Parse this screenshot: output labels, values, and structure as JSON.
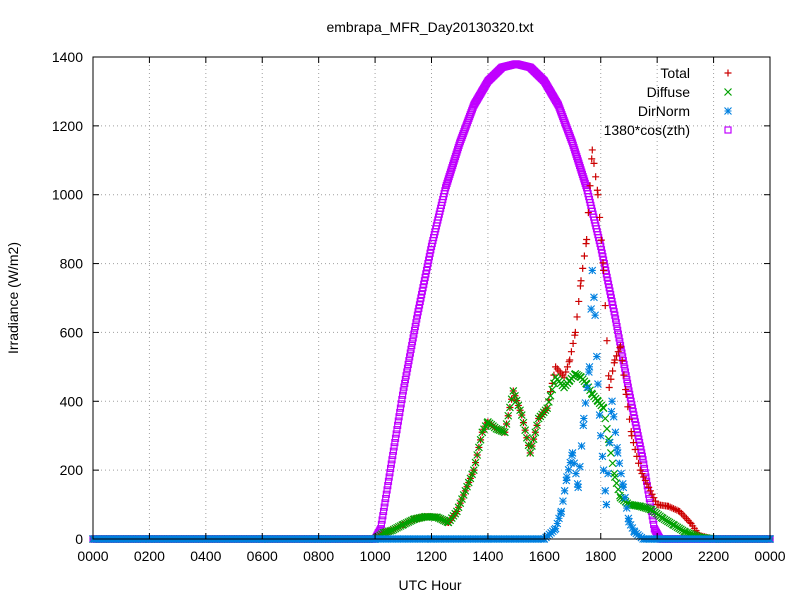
{
  "chart_data": {
    "type": "scatter",
    "title": "embrapa_MFR_Day20130320.txt",
    "xlabel": "UTC Hour",
    "ylabel": "Irradiance (W/m2)",
    "xlim": [
      0,
      24
    ],
    "ylim": [
      0,
      1400
    ],
    "x_ticks": [
      {
        "value": 0,
        "label": "0000"
      },
      {
        "value": 2,
        "label": "0200"
      },
      {
        "value": 4,
        "label": "0400"
      },
      {
        "value": 6,
        "label": "0600"
      },
      {
        "value": 8,
        "label": "0800"
      },
      {
        "value": 10,
        "label": "1000"
      },
      {
        "value": 12,
        "label": "1200"
      },
      {
        "value": 14,
        "label": "1400"
      },
      {
        "value": 16,
        "label": "1600"
      },
      {
        "value": 18,
        "label": "1800"
      },
      {
        "value": 20,
        "label": "2000"
      },
      {
        "value": 22,
        "label": "2200"
      },
      {
        "value": 24,
        "label": "0000"
      }
    ],
    "y_ticks": [
      0,
      200,
      400,
      600,
      800,
      1000,
      1200,
      1400
    ],
    "grid": true,
    "legend_position": "top-right",
    "series": [
      {
        "name": "Total",
        "marker": "plus",
        "color": "#cc0000",
        "points": [
          [
            0,
            0
          ],
          [
            2,
            0
          ],
          [
            4,
            0
          ],
          [
            6,
            0
          ],
          [
            8,
            0
          ],
          [
            10,
            0
          ],
          [
            10.3,
            18
          ],
          [
            10.6,
            25
          ],
          [
            11,
            42
          ],
          [
            11.4,
            58
          ],
          [
            11.8,
            65
          ],
          [
            12.2,
            63
          ],
          [
            12.6,
            48
          ],
          [
            12.9,
            80
          ],
          [
            13.2,
            140
          ],
          [
            13.5,
            200
          ],
          [
            13.8,
            310
          ],
          [
            14.0,
            340
          ],
          [
            14.3,
            320
          ],
          [
            14.6,
            310
          ],
          [
            14.9,
            430
          ],
          [
            15.2,
            360
          ],
          [
            15.5,
            250
          ],
          [
            15.8,
            350
          ],
          [
            16.1,
            380
          ],
          [
            16.4,
            500
          ],
          [
            16.7,
            470
          ],
          [
            16.9,
            520
          ],
          [
            17.1,
            600
          ],
          [
            17.3,
            750
          ],
          [
            17.5,
            870
          ],
          [
            17.7,
            1130
          ],
          [
            17.9,
            1000
          ],
          [
            18.1,
            780
          ],
          [
            18.3,
            440
          ],
          [
            18.5,
            520
          ],
          [
            18.7,
            560
          ],
          [
            18.9,
            420
          ],
          [
            19.1,
            300
          ],
          [
            19.4,
            200
          ],
          [
            19.7,
            150
          ],
          [
            20.0,
            100
          ],
          [
            20.4,
            95
          ],
          [
            20.8,
            80
          ],
          [
            21.2,
            45
          ],
          [
            21.5,
            10
          ],
          [
            22,
            0
          ],
          [
            24,
            0
          ]
        ]
      },
      {
        "name": "Diffuse",
        "marker": "cross",
        "color": "#00a000",
        "points": [
          [
            0,
            0
          ],
          [
            2,
            0
          ],
          [
            4,
            0
          ],
          [
            6,
            0
          ],
          [
            8,
            0
          ],
          [
            10,
            0
          ],
          [
            10.3,
            18
          ],
          [
            10.6,
            25
          ],
          [
            11,
            42
          ],
          [
            11.4,
            58
          ],
          [
            11.8,
            65
          ],
          [
            12.2,
            63
          ],
          [
            12.6,
            48
          ],
          [
            12.9,
            80
          ],
          [
            13.2,
            140
          ],
          [
            13.5,
            200
          ],
          [
            13.8,
            310
          ],
          [
            14.0,
            340
          ],
          [
            14.3,
            320
          ],
          [
            14.6,
            310
          ],
          [
            14.9,
            430
          ],
          [
            15.2,
            360
          ],
          [
            15.5,
            250
          ],
          [
            15.8,
            350
          ],
          [
            16.1,
            380
          ],
          [
            16.4,
            470
          ],
          [
            16.7,
            440
          ],
          [
            16.9,
            460
          ],
          [
            17.1,
            480
          ],
          [
            17.3,
            470
          ],
          [
            17.5,
            450
          ],
          [
            17.7,
            420
          ],
          [
            17.9,
            400
          ],
          [
            18.1,
            380
          ],
          [
            18.3,
            280
          ],
          [
            18.5,
            180
          ],
          [
            18.7,
            120
          ],
          [
            19.0,
            100
          ],
          [
            19.4,
            95
          ],
          [
            19.8,
            85
          ],
          [
            20.2,
            60
          ],
          [
            20.6,
            40
          ],
          [
            21.0,
            20
          ],
          [
            21.5,
            5
          ],
          [
            22,
            0
          ],
          [
            24,
            0
          ]
        ]
      },
      {
        "name": "DirNorm",
        "marker": "star",
        "color": "#0080e0",
        "points": [
          [
            0,
            0
          ],
          [
            2,
            0
          ],
          [
            4,
            0
          ],
          [
            6,
            0
          ],
          [
            8,
            0
          ],
          [
            10,
            0
          ],
          [
            12,
            0
          ],
          [
            14,
            0
          ],
          [
            16,
            0
          ],
          [
            16.4,
            30
          ],
          [
            16.6,
            80
          ],
          [
            16.8,
            180
          ],
          [
            17.0,
            250
          ],
          [
            17.2,
            150
          ],
          [
            17.4,
            350
          ],
          [
            17.6,
            500
          ],
          [
            17.7,
            780
          ],
          [
            17.8,
            650
          ],
          [
            17.9,
            450
          ],
          [
            18.0,
            300
          ],
          [
            18.1,
            200
          ],
          [
            18.2,
            100
          ],
          [
            18.4,
            400
          ],
          [
            18.6,
            250
          ],
          [
            18.8,
            150
          ],
          [
            19.0,
            50
          ],
          [
            19.2,
            20
          ],
          [
            19.5,
            0
          ],
          [
            20,
            0
          ],
          [
            22,
            0
          ],
          [
            24,
            0
          ]
        ]
      },
      {
        "name": "1380*cos(zth)",
        "marker": "square",
        "color": "#c000ff",
        "points": [
          [
            0,
            0
          ],
          [
            2,
            0
          ],
          [
            4,
            0
          ],
          [
            6,
            0
          ],
          [
            8,
            0
          ],
          [
            10,
            0
          ],
          [
            10.2,
            30
          ],
          [
            10.6,
            230
          ],
          [
            11.0,
            430
          ],
          [
            11.5,
            650
          ],
          [
            12.0,
            850
          ],
          [
            12.5,
            1020
          ],
          [
            13.0,
            1150
          ],
          [
            13.5,
            1260
          ],
          [
            14.0,
            1330
          ],
          [
            14.5,
            1370
          ],
          [
            15.0,
            1380
          ],
          [
            15.5,
            1370
          ],
          [
            16.0,
            1330
          ],
          [
            16.5,
            1260
          ],
          [
            17.0,
            1150
          ],
          [
            17.5,
            1020
          ],
          [
            18.0,
            850
          ],
          [
            18.5,
            650
          ],
          [
            19.0,
            430
          ],
          [
            19.5,
            230
          ],
          [
            19.9,
            30
          ],
          [
            20.1,
            0
          ],
          [
            22,
            0
          ],
          [
            24,
            0
          ]
        ]
      }
    ]
  }
}
